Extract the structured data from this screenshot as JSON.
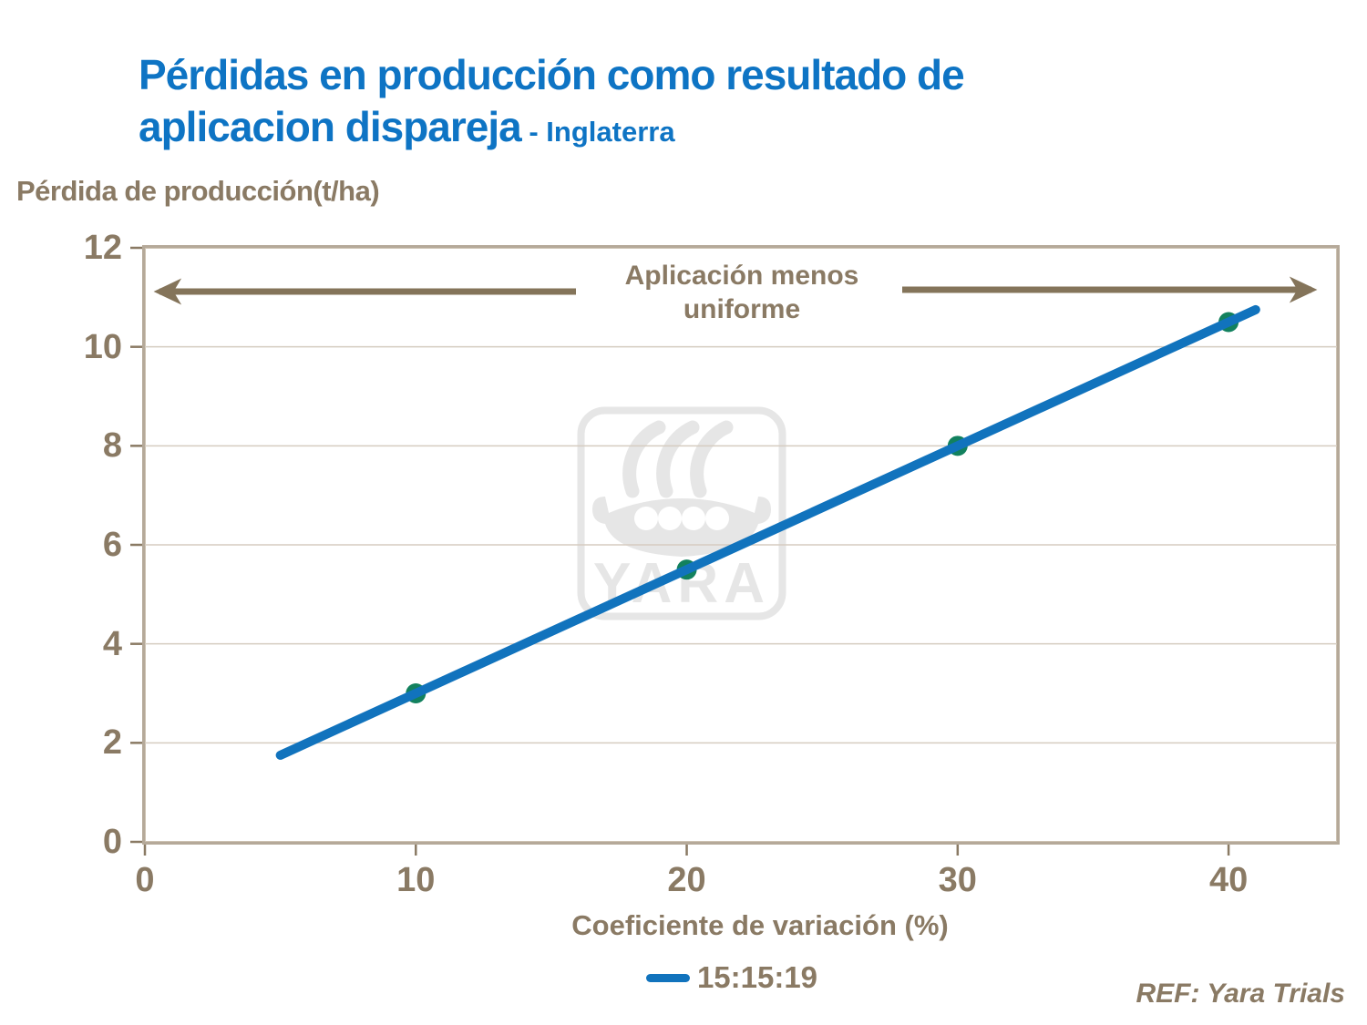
{
  "title": {
    "line1": "Pérdidas en producción como resultado de",
    "line2": "aplicacion dispareja",
    "suffix": " - Inglaterra"
  },
  "y_axis_title": "Pérdida de producción(t/ha)",
  "x_axis_title": "Coeficiente de variación (%)",
  "annotation": {
    "line1": "Aplicación  menos",
    "line2": "uniforme"
  },
  "legend": {
    "label": "15:15:19"
  },
  "footer": {
    "ref": "REF: Yara Trials"
  },
  "watermark": {
    "text": "YARA",
    "icon": "yara-viking-ship-logo"
  },
  "colors": {
    "title_blue": "#0e74c4",
    "line_blue": "#1173bd",
    "marker_green": "#12815e",
    "text_brown": "#8a7a64",
    "arrow_brown": "#84745a",
    "border_taupe": "#b5a999",
    "gridline": "#d5ccc0",
    "watermark_gray": "#e6e6e6"
  },
  "chart_data": {
    "type": "line",
    "title": "Pérdidas en producción como resultado de aplicacion dispareja - Inglaterra",
    "xlabel": "Coeficiente de variación (%)",
    "ylabel": "Pérdida de producción(t/ha)",
    "xlim": [
      0,
      44
    ],
    "ylim": [
      0,
      12
    ],
    "x_ticks": [
      0,
      10,
      20,
      30,
      40
    ],
    "y_ticks": [
      0,
      2,
      4,
      6,
      8,
      10,
      12
    ],
    "grid": "horizontal",
    "legend_position": "bottom-center",
    "series": [
      {
        "name": "15:15:19",
        "color": "#1173bd",
        "marker_color": "#12815e",
        "line_endpoints": [
          [
            5,
            1.75
          ],
          [
            41,
            10.75
          ]
        ],
        "markers": [
          [
            10,
            3
          ],
          [
            20,
            5.5
          ],
          [
            30,
            8
          ],
          [
            40,
            10.5
          ]
        ]
      }
    ],
    "annotation": {
      "text": "Aplicación menos uniforme",
      "arrows": [
        "left",
        "right"
      ],
      "y_position": 11.1
    }
  }
}
